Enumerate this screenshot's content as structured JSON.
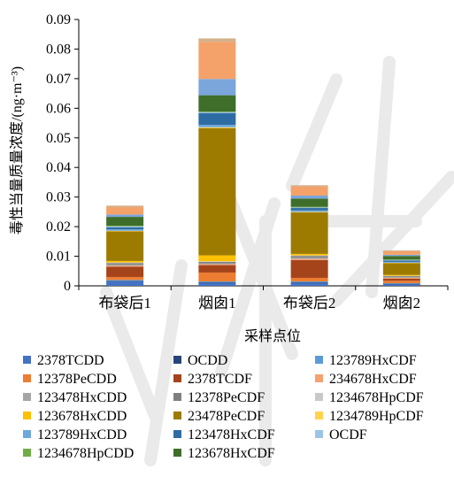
{
  "chart_data": {
    "type": "bar",
    "stacked": true,
    "xlabel": "采样点位",
    "ylabel": "毒性当量质量浓度/(ng·m⁻³)",
    "ylim": [
      0,
      0.09
    ],
    "yticks": [
      "0",
      "0.01",
      "0.02",
      "0.03",
      "0.04",
      "0.05",
      "0.06",
      "0.07",
      "0.08",
      "0.09"
    ],
    "categories": [
      "布袋后1",
      "烟囱1",
      "布袋后2",
      "烟囱2"
    ],
    "grid": false,
    "legend_position": "bottom",
    "series": [
      {
        "name": "2378TCDD",
        "color": "#4472c4",
        "values": [
          0.0015,
          0.001,
          0.001,
          0.0006
        ]
      },
      {
        "name": "OCDD",
        "color": "#264478",
        "values": [
          0.0002,
          0.0002,
          0.0002,
          0.0001
        ]
      },
      {
        "name": "123789HxCDF",
        "color": "#5b9bd5",
        "values": [
          0.0003,
          0.0003,
          0.0003,
          0.0002
        ]
      },
      {
        "name": "12378PeCDD",
        "color": "#ed7d31",
        "values": [
          0.001,
          0.003,
          0.0012,
          0.0008
        ]
      },
      {
        "name": "2378TCDF",
        "color": "#a5441b",
        "values": [
          0.0035,
          0.0025,
          0.006,
          0.0007
        ]
      },
      {
        "name": "234678HxCDF",
        "color": "#f4a170",
        "values": [
          0.0003,
          0.0003,
          0.0004,
          0.0003
        ]
      },
      {
        "name": "123478HxCDD",
        "color": "#a5a5a5",
        "values": [
          0.0004,
          0.0003,
          0.0004,
          0.0003
        ]
      },
      {
        "name": "12378PeCDF",
        "color": "#7f7f7f",
        "values": [
          0.0005,
          0.0005,
          0.0006,
          0.0003
        ]
      },
      {
        "name": "1234678HpCDF",
        "color": "#c9c9c9",
        "values": [
          0.0002,
          0.0002,
          0.0002,
          0.0001
        ]
      },
      {
        "name": "123678HxCDD",
        "color": "#ffc000",
        "values": [
          0.0005,
          0.002,
          0.0005,
          0.0003
        ]
      },
      {
        "name": "23478PeCDF",
        "color": "#9c7b00",
        "values": [
          0.01,
          0.043,
          0.014,
          0.004
        ]
      },
      {
        "name": "1234789HpCDF",
        "color": "#ffd34d",
        "values": [
          0.0002,
          0.0003,
          0.0002,
          0.0001
        ]
      },
      {
        "name": "123789HxCDD",
        "color": "#6fa8dc",
        "values": [
          0.0005,
          0.0008,
          0.0005,
          0.0003
        ]
      },
      {
        "name": "123478HxCDF",
        "color": "#2e6da4",
        "values": [
          0.0007,
          0.004,
          0.0008,
          0.0005
        ]
      },
      {
        "name": "OCDF",
        "color": "#9dc3e6",
        "values": [
          0.0003,
          0.0003,
          0.0002,
          0.0002
        ]
      },
      {
        "name": "1234678HpCDD",
        "color": "#70ad47",
        "values": [
          0.0002,
          0.0002,
          0.0002,
          0.0001
        ]
      },
      {
        "name": "123678HxCDF",
        "color": "#3f6e2a",
        "values": [
          0.003,
          0.0055,
          0.0028,
          0.0012
        ]
      },
      {
        "name": "",
        "color": "#7aa6db",
        "values": [
          0.0008,
          0.0055,
          0.001,
          0.0004
        ]
      },
      {
        "name": "",
        "color": "#f4a26a",
        "values": [
          0.0025,
          0.0125,
          0.003,
          0.0012
        ]
      },
      {
        "name": "",
        "color": "#d5b08a",
        "values": [
          0.0005,
          0.0012,
          0.0005,
          0.0003
        ]
      }
    ]
  }
}
